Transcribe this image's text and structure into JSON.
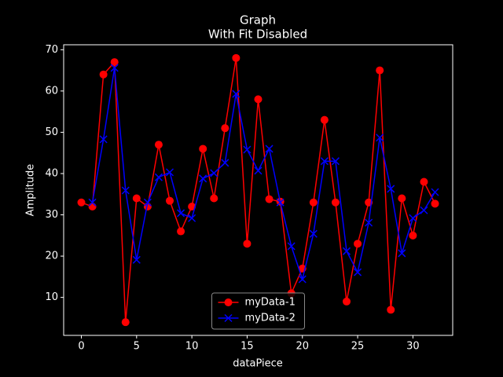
{
  "chart_data": {
    "type": "line",
    "title": "Graph",
    "subtitle": "With Fit Disabled",
    "x_label": "dataPiece",
    "y_label": "Amplitude",
    "x": [
      0,
      1,
      2,
      3,
      4,
      5,
      6,
      7,
      8,
      9,
      10,
      11,
      12,
      13,
      14,
      15,
      16,
      17,
      18,
      19,
      20,
      21,
      22,
      23,
      24,
      25,
      26,
      27,
      28,
      29,
      30,
      31,
      32
    ],
    "series": [
      {
        "name": "myData-1",
        "color": "#ff0000",
        "marker": "o",
        "values": [
          33,
          32,
          64,
          67,
          4,
          34,
          32,
          47,
          33.4,
          26,
          32,
          46,
          34,
          51,
          68,
          23,
          58,
          33.8,
          33.2,
          11,
          17,
          33,
          53,
          33,
          9,
          23,
          33,
          65,
          7,
          34,
          25,
          38,
          32.7
        ]
      },
      {
        "name": "myData-2",
        "color": "#0000ff",
        "marker": "x",
        "values": [
          null,
          33,
          48.3,
          65.6,
          35.9,
          19.1,
          33,
          39.1,
          40.3,
          30.4,
          29.2,
          38.8,
          40.1,
          42.6,
          59.3,
          45.8,
          40.7,
          46,
          33,
          22.4,
          14.4,
          25.4,
          43,
          43,
          21.2,
          16.1,
          28.1,
          48.7,
          36.3,
          20.7,
          29.2,
          31.1,
          35.5
        ]
      }
    ],
    "xlim": [
      -1.6,
      33.6
    ],
    "xticks": [
      0,
      5,
      10,
      15,
      20,
      25,
      30
    ],
    "ylim": [
      0.8,
      71.2
    ],
    "yticks": [
      10,
      20,
      30,
      40,
      50,
      60,
      70
    ],
    "legend": "lower center"
  }
}
